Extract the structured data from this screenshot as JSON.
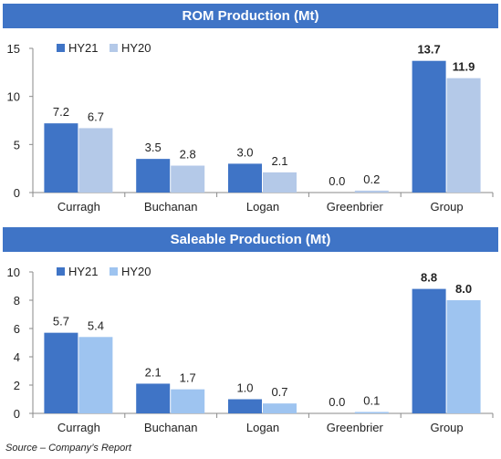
{
  "colors": {
    "banner": "#3f74c6",
    "hy21": "#3f74c6",
    "hy20_rom": "#b4c9e8",
    "hy20_saleable": "#9ec4f0"
  },
  "source": "Source – Company’s Report",
  "chart_data": [
    {
      "type": "bar",
      "title": "ROM Production (Mt)",
      "categories": [
        "Curragh",
        "Buchanan",
        "Logan",
        "Greenbrier",
        "Group"
      ],
      "series": [
        {
          "name": "HY21",
          "values": [
            7.2,
            3.5,
            3.0,
            0.0,
            13.7
          ]
        },
        {
          "name": "HY20",
          "values": [
            6.7,
            2.8,
            2.1,
            0.2,
            11.9
          ]
        }
      ],
      "value_labels": {
        "HY21": [
          "7.2",
          "3.5",
          "3.0",
          "0.0",
          "13.7"
        ],
        "HY20": [
          "6.7",
          "2.8",
          "2.1",
          "0.2",
          "11.9"
        ]
      },
      "bold_category": "Group",
      "ylim": [
        0,
        15
      ],
      "yticks": [
        0,
        5,
        10,
        15
      ],
      "grid": false,
      "legend": "top-left"
    },
    {
      "type": "bar",
      "title": "Saleable Production (Mt)",
      "categories": [
        "Curragh",
        "Buchanan",
        "Logan",
        "Greenbrier",
        "Group"
      ],
      "series": [
        {
          "name": "HY21",
          "values": [
            5.7,
            2.1,
            1.0,
            0.0,
            8.8
          ]
        },
        {
          "name": "HY20",
          "values": [
            5.4,
            1.7,
            0.7,
            0.1,
            8.0
          ]
        }
      ],
      "value_labels": {
        "HY21": [
          "5.7",
          "2.1",
          "1.0",
          "0.0",
          "8.8"
        ],
        "HY20": [
          "5.4",
          "1.7",
          "0.7",
          "0.1",
          "8.0"
        ]
      },
      "bold_category": "Group",
      "ylim": [
        0,
        10
      ],
      "yticks": [
        0,
        2,
        4,
        6,
        8,
        10
      ],
      "grid": false,
      "legend": "top-left"
    }
  ]
}
